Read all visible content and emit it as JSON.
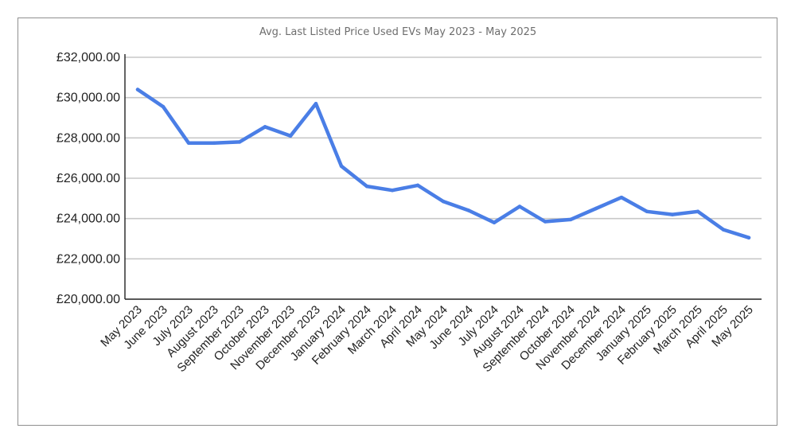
{
  "chart_data": {
    "type": "line",
    "title": "Avg. Last Listed Price Used EVs May 2023 - May 2025",
    "xlabel": "",
    "ylabel": "",
    "ylim": [
      20000,
      32000
    ],
    "yticks": [
      "£20,000.00",
      "£22,000.00",
      "£24,000.00",
      "£26,000.00",
      "£28,000.00",
      "£30,000.00",
      "£32,000.00"
    ],
    "grid": true,
    "legend": "none",
    "categories": [
      "May 2023",
      "June 2023",
      "July 2023",
      "August 2023",
      "September 2023",
      "October 2023",
      "November 2023",
      "December 2023",
      "January 2024",
      "February 2024",
      "March 2024",
      "April 2024",
      "May 2024",
      "June 2024",
      "July 2024",
      "August 2024",
      "September 2024",
      "October 2024",
      "November 2024",
      "December 2024",
      "January 2025",
      "February 2025",
      "March 2025",
      "April 2025",
      "May 2025"
    ],
    "series": [
      {
        "color": "#4a7ee6",
        "values": [
          30400,
          29550,
          27750,
          27750,
          27800,
          28550,
          28100,
          29700,
          26600,
          25600,
          25400,
          25650,
          24850,
          24400,
          23800,
          24600,
          23850,
          23950,
          24500,
          25050,
          24350,
          24200,
          24350,
          23450,
          23050
        ]
      }
    ]
  }
}
